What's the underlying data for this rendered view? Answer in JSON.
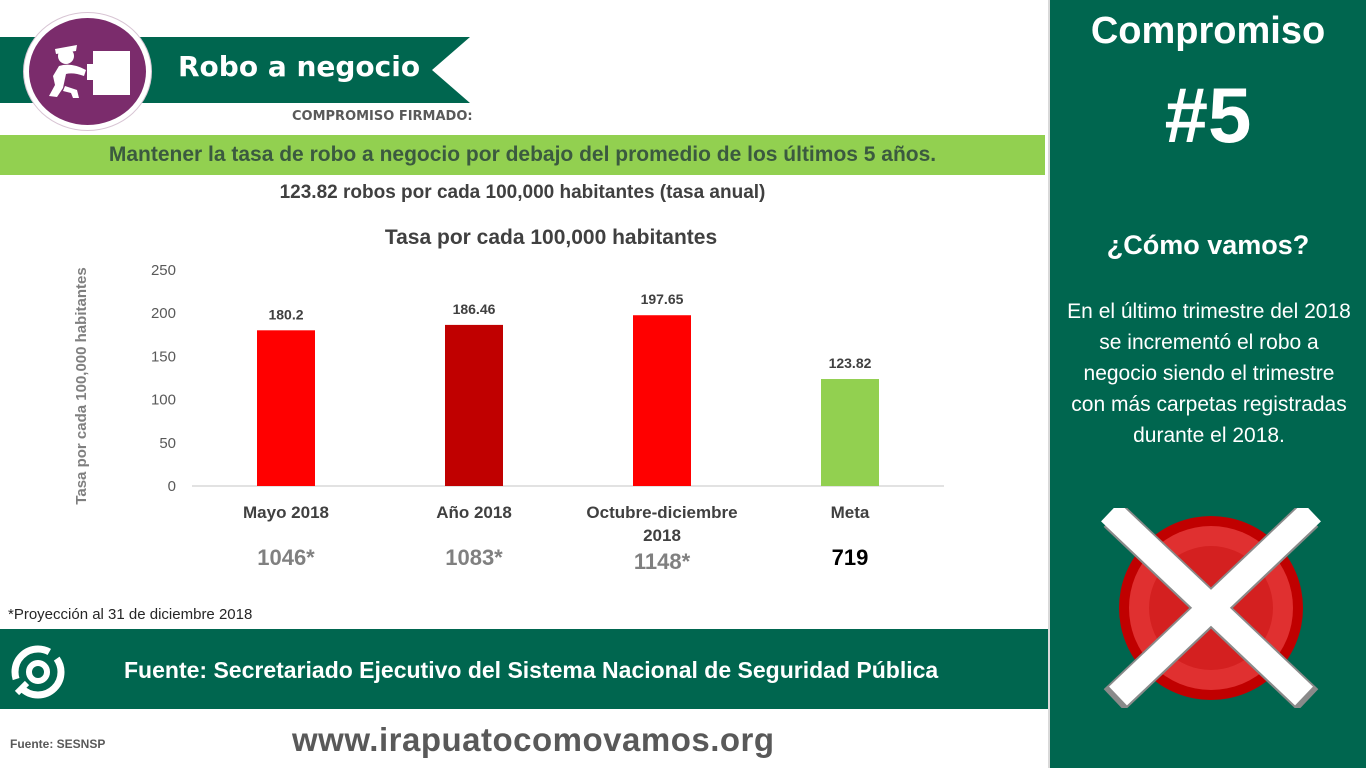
{
  "header": {
    "title": "Robo a negocio",
    "signed_label": "COMPROMISO FIRMADO:",
    "goal": "Mantener la tasa de robo a negocio por debajo del promedio de los últimos 5 años.",
    "rate_note": "123.82 robos por cada 100,000 habitantes (tasa anual)"
  },
  "chart_data": {
    "type": "bar",
    "title": "Tasa por cada 100,000 habitantes",
    "ylabel": "Tasa por cada 100,000 habitantes",
    "xlabel": "",
    "ylim": [
      0,
      250
    ],
    "yticks": [
      "0",
      "50",
      "100",
      "150",
      "200",
      "250"
    ],
    "categories": [
      "Mayo 2018",
      "Año 2018",
      "Octubre-diciembre 2018",
      "Meta"
    ],
    "category_lines": [
      [
        "Mayo 2018"
      ],
      [
        "Año 2018"
      ],
      [
        "Octubre-diciembre",
        "2018"
      ],
      [
        "Meta"
      ]
    ],
    "values": [
      180.2,
      186.46,
      197.65,
      123.82
    ],
    "value_labels": [
      "180.2",
      "186.46",
      "197.65",
      "123.82"
    ],
    "bar_colors": [
      "#ff0000",
      "#c00000",
      "#ff0000",
      "#92d050"
    ],
    "grid": false,
    "legend": "none",
    "counts": [
      "1046*",
      "1083*",
      "1148*",
      "719"
    ],
    "count_colors": [
      "#808080",
      "#808080",
      "#808080",
      "#000000"
    ]
  },
  "footnote": "*Proyección al 31 de diciembre 2018",
  "footer": {
    "source": "Fuente: Secretariado Ejecutivo del Sistema Nacional de Seguridad Pública",
    "small_source": "Fuente: SESNSP",
    "website": "www.irapuatocomovamos.org"
  },
  "side_panel": {
    "title": "Compromiso",
    "number": "#5",
    "question": "¿Cómo vamos?",
    "description": "En el último trimestre del 2018 se incrementó el robo a negocio siendo el trimestre con más carpetas registradas durante el 2018.",
    "status_icon": "red-x-icon"
  },
  "colors": {
    "brand_green": "#00664f",
    "accent_green": "#92d050",
    "icon_purple": "#7b2c6c",
    "bar_red": "#ff0000",
    "bar_dark_red": "#c00000"
  }
}
